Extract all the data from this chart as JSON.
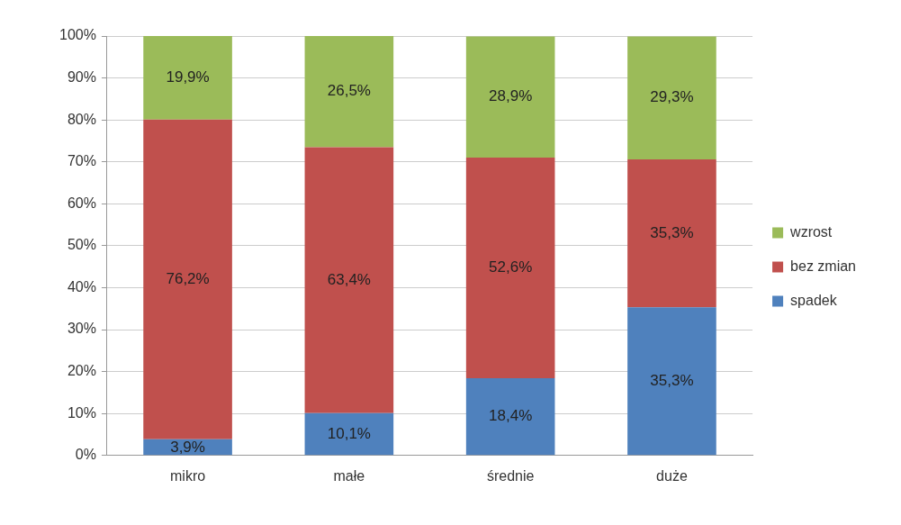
{
  "chart_data": {
    "type": "bar",
    "stacked": true,
    "categories": [
      "mikro",
      "małe",
      "średnie",
      "duże"
    ],
    "series": [
      {
        "name": "spadek",
        "color": "#4f81bd",
        "values": [
          3.9,
          10.1,
          18.4,
          35.3
        ],
        "value_labels": [
          "3,9%",
          "10,1%",
          "18,4%",
          "35,3%"
        ]
      },
      {
        "name": "bez zmian",
        "color": "#c0504d",
        "values": [
          76.2,
          63.4,
          52.6,
          35.3
        ],
        "value_labels": [
          "76,2%",
          "63,4%",
          "52,6%",
          "35,3%"
        ]
      },
      {
        "name": "wzrost",
        "color": "#9bbb59",
        "values": [
          19.9,
          26.5,
          28.9,
          29.3
        ],
        "value_labels": [
          "19,9%",
          "26,5%",
          "28,9%",
          "29,3%"
        ]
      }
    ],
    "ylim": [
      0,
      100
    ],
    "yticks": [
      {
        "value": 0,
        "label": "0%"
      },
      {
        "value": 10,
        "label": "10%"
      },
      {
        "value": 20,
        "label": "20%"
      },
      {
        "value": 30,
        "label": "30%"
      },
      {
        "value": 40,
        "label": "40%"
      },
      {
        "value": 50,
        "label": "50%"
      },
      {
        "value": 60,
        "label": "60%"
      },
      {
        "value": 70,
        "label": "70%"
      },
      {
        "value": 80,
        "label": "80%"
      },
      {
        "value": 90,
        "label": "90%"
      },
      {
        "value": 100,
        "label": "100%"
      }
    ],
    "grid": "y",
    "legend": "right"
  }
}
